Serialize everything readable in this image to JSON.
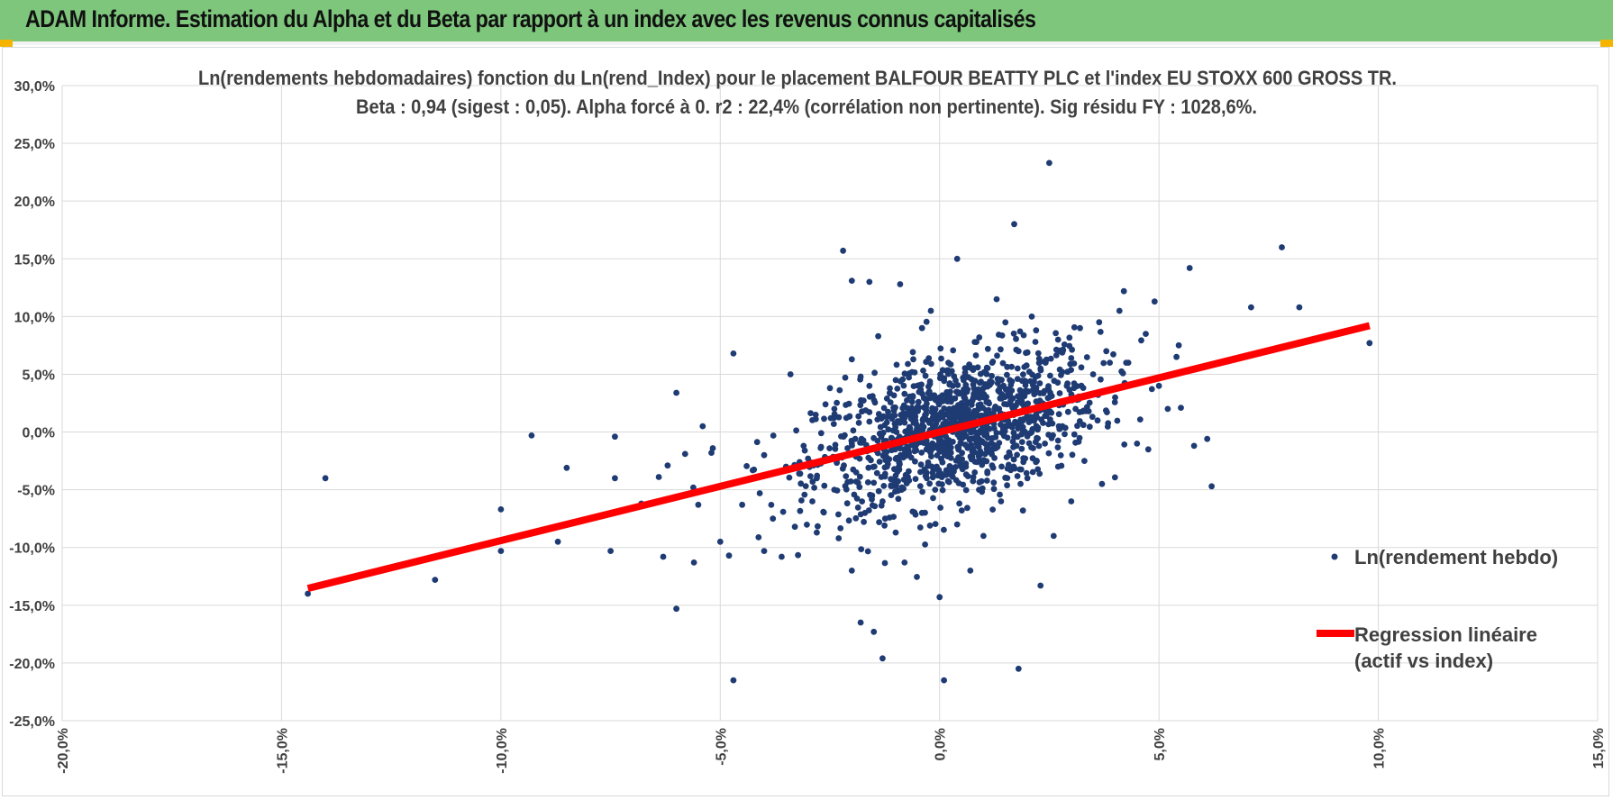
{
  "header": {
    "title": "ADAM Informe. Estimation du Alpha et du Beta par rapport à un index avec les revenus connus capitalisés"
  },
  "colors": {
    "banner": "#7dc67c",
    "accent_corner": "#f4b400",
    "scatter": "#1f3b73",
    "regression": "#ff0000",
    "grid": "#d9d9d9"
  },
  "chart_data": {
    "type": "scatter",
    "title": "Ln(rendements hebdomadaires) fonction du Ln(rend_Index) pour le placement BALFOUR BEATTY PLC et l'index EU STOXX 600 GROSS TR.",
    "subtitle": "Beta : 0,94 (sigest : 0,05).  Alpha forcé à 0. r2 : 22,4% (corrélation non pertinente). Sig résidu FY : 1028,6%.",
    "xlim": [
      -0.2,
      0.15
    ],
    "ylim": [
      -0.25,
      0.3
    ],
    "x_ticks": [
      "-20,0%",
      "-15,0%",
      "-10,0%",
      "-5,0%",
      "0,0%",
      "5,0%",
      "10,0%",
      "15,0%"
    ],
    "y_ticks": [
      "30,0%",
      "25,0%",
      "20,0%",
      "15,0%",
      "10,0%",
      "5,0%",
      "0,0%",
      "-5,0%",
      "-10,0%",
      "-15,0%",
      "-20,0%",
      "-25,0%"
    ],
    "grid": true,
    "legend_position": "right",
    "beta": 0.94,
    "regression": {
      "name": "Regression linéaire (actif vs index)",
      "x": [
        -0.144,
        0.098
      ],
      "y": [
        -0.1354,
        0.0921
      ]
    },
    "series": [
      {
        "name": "Ln(rendement hebdo)",
        "note_points": "approximate sample read from the plot",
        "points": [
          [
            -0.144,
            -0.14
          ],
          [
            -0.14,
            -0.04
          ],
          [
            -0.115,
            -0.128
          ],
          [
            -0.1,
            -0.067
          ],
          [
            -0.1,
            -0.103
          ],
          [
            -0.093,
            -0.003
          ],
          [
            -0.087,
            -0.095
          ],
          [
            -0.085,
            -0.031
          ],
          [
            -0.075,
            -0.103
          ],
          [
            -0.074,
            -0.04
          ],
          [
            -0.074,
            -0.004
          ],
          [
            -0.064,
            -0.039
          ],
          [
            -0.063,
            -0.108
          ],
          [
            -0.062,
            -0.029
          ],
          [
            -0.06,
            0.034
          ],
          [
            -0.06,
            -0.153
          ],
          [
            -0.058,
            -0.019
          ],
          [
            -0.056,
            -0.113
          ],
          [
            -0.055,
            -0.063
          ],
          [
            -0.054,
            0.005
          ],
          [
            -0.05,
            -0.095
          ],
          [
            -0.048,
            -0.107
          ],
          [
            -0.047,
            0.068
          ],
          [
            -0.047,
            -0.215
          ],
          [
            -0.045,
            -0.063
          ],
          [
            -0.04,
            -0.103
          ],
          [
            -0.04,
            -0.02
          ],
          [
            -0.038,
            -0.075
          ],
          [
            -0.036,
            -0.108
          ],
          [
            -0.034,
            0.05
          ],
          [
            -0.033,
            -0.082
          ],
          [
            -0.032,
            -0.036
          ],
          [
            -0.03,
            -0.023
          ],
          [
            -0.029,
            -0.06
          ],
          [
            -0.028,
            -0.087
          ],
          [
            -0.027,
            -0.001
          ],
          [
            -0.025,
            0.038
          ],
          [
            -0.024,
            -0.05
          ],
          [
            -0.023,
            -0.092
          ],
          [
            -0.022,
            0.157
          ],
          [
            -0.021,
            -0.014
          ],
          [
            -0.02,
            0.063
          ],
          [
            -0.02,
            -0.12
          ],
          [
            -0.02,
            0.131
          ],
          [
            -0.019,
            -0.035
          ],
          [
            -0.018,
            0.048
          ],
          [
            -0.018,
            -0.165
          ],
          [
            -0.017,
            -0.07
          ],
          [
            -0.016,
            0.009
          ],
          [
            -0.016,
            0.13
          ],
          [
            -0.015,
            -0.044
          ],
          [
            -0.015,
            -0.173
          ],
          [
            -0.014,
            0.083
          ],
          [
            -0.013,
            -0.06
          ],
          [
            -0.013,
            -0.196
          ],
          [
            -0.012,
            0.029
          ],
          [
            -0.011,
            -0.005
          ],
          [
            -0.01,
            0.045
          ],
          [
            -0.01,
            -0.087
          ],
          [
            -0.009,
            0.128
          ],
          [
            -0.008,
            0.033
          ],
          [
            -0.008,
            -0.113
          ],
          [
            -0.007,
            -0.018
          ],
          [
            -0.006,
            0.063
          ],
          [
            -0.005,
            0.022
          ],
          [
            -0.004,
            -0.07
          ],
          [
            -0.004,
            0.09
          ],
          [
            -0.003,
            -0.035
          ],
          [
            -0.002,
            0.01
          ],
          [
            -0.002,
            0.105
          ],
          [
            -0.001,
            -0.05
          ],
          [
            0.0,
            0.03
          ],
          [
            0.0,
            -0.143
          ],
          [
            0.001,
            -0.01
          ],
          [
            0.001,
            -0.215
          ],
          [
            0.002,
            0.06
          ],
          [
            0.003,
            0.0
          ],
          [
            0.004,
            -0.08
          ],
          [
            0.004,
            0.15
          ],
          [
            0.005,
            0.025
          ],
          [
            0.006,
            -0.03
          ],
          [
            0.006,
            0.055
          ],
          [
            0.007,
            -0.12
          ],
          [
            0.007,
            0.01
          ],
          [
            0.008,
            0.078
          ],
          [
            0.009,
            -0.05
          ],
          [
            0.009,
            0.02
          ],
          [
            0.01,
            0.038
          ],
          [
            0.01,
            -0.09
          ],
          [
            0.011,
            -0.005
          ],
          [
            0.012,
            0.06
          ],
          [
            0.012,
            0.015
          ],
          [
            0.013,
            0.115
          ],
          [
            0.014,
            0.03
          ],
          [
            0.014,
            -0.06
          ],
          [
            0.015,
            0.005
          ],
          [
            0.016,
            0.045
          ],
          [
            0.016,
            -0.02
          ],
          [
            0.017,
            0.18
          ],
          [
            0.017,
            0.02
          ],
          [
            0.018,
            -0.205
          ],
          [
            0.018,
            0.07
          ],
          [
            0.019,
            0.01
          ],
          [
            0.02,
            -0.04
          ],
          [
            0.02,
            0.035
          ],
          [
            0.021,
            0.1
          ],
          [
            0.022,
            0.015
          ],
          [
            0.023,
            -0.133
          ],
          [
            0.023,
            0.055
          ],
          [
            0.024,
            -0.01
          ],
          [
            0.025,
            0.233
          ],
          [
            0.025,
            0.03
          ],
          [
            0.026,
            -0.09
          ],
          [
            0.027,
            0.08
          ],
          [
            0.028,
            0.005
          ],
          [
            0.029,
            0.04
          ],
          [
            0.03,
            -0.06
          ],
          [
            0.031,
            0.02
          ],
          [
            0.032,
            0.09
          ],
          [
            0.033,
            -0.025
          ],
          [
            0.035,
            0.05
          ],
          [
            0.036,
            0.01
          ],
          [
            0.037,
            -0.045
          ],
          [
            0.038,
            0.07
          ],
          [
            0.04,
            0.03
          ],
          [
            0.041,
            0.105
          ],
          [
            0.042,
            0.122
          ],
          [
            0.043,
            0.06
          ],
          [
            0.045,
            -0.01
          ],
          [
            0.047,
            0.085
          ],
          [
            0.049,
            0.113
          ],
          [
            0.05,
            0.04
          ],
          [
            0.052,
            0.02
          ],
          [
            0.054,
            0.065
          ],
          [
            0.055,
            0.021
          ],
          [
            0.057,
            0.142
          ],
          [
            0.058,
            -0.012
          ],
          [
            0.061,
            -0.006
          ],
          [
            0.062,
            -0.047
          ],
          [
            0.071,
            0.108
          ],
          [
            0.078,
            0.16
          ],
          [
            0.082,
            0.108
          ],
          [
            0.098,
            0.077
          ],
          [
            -0.026,
            0.024
          ],
          [
            -0.031,
            -0.012
          ],
          [
            -0.035,
            -0.03
          ],
          [
            -0.041,
            -0.053
          ],
          [
            -0.052,
            -0.018
          ],
          [
            -0.068,
            -0.062
          ],
          [
            0.034,
            0.018
          ],
          [
            0.03,
            0.064
          ],
          [
            0.027,
            -0.03
          ],
          [
            0.022,
            0.088
          ],
          [
            0.019,
            -0.068
          ],
          [
            0.015,
            0.095
          ],
          [
            0.011,
            0.072
          ],
          [
            0.008,
            -0.035
          ],
          [
            0.003,
            0.04
          ],
          [
            -0.003,
            -0.015
          ],
          [
            -0.007,
            0.02
          ],
          [
            -0.012,
            -0.03
          ],
          [
            -0.016,
            0.04
          ],
          [
            -0.02,
            -0.01
          ],
          [
            -0.024,
            0.02
          ],
          [
            -0.028,
            -0.04
          ]
        ]
      }
    ]
  },
  "legend": {
    "scatter_label": "Ln(rendement hebdo)",
    "regression_label_line1": "Regression linéaire",
    "regression_label_line2": "(actif vs index)"
  }
}
